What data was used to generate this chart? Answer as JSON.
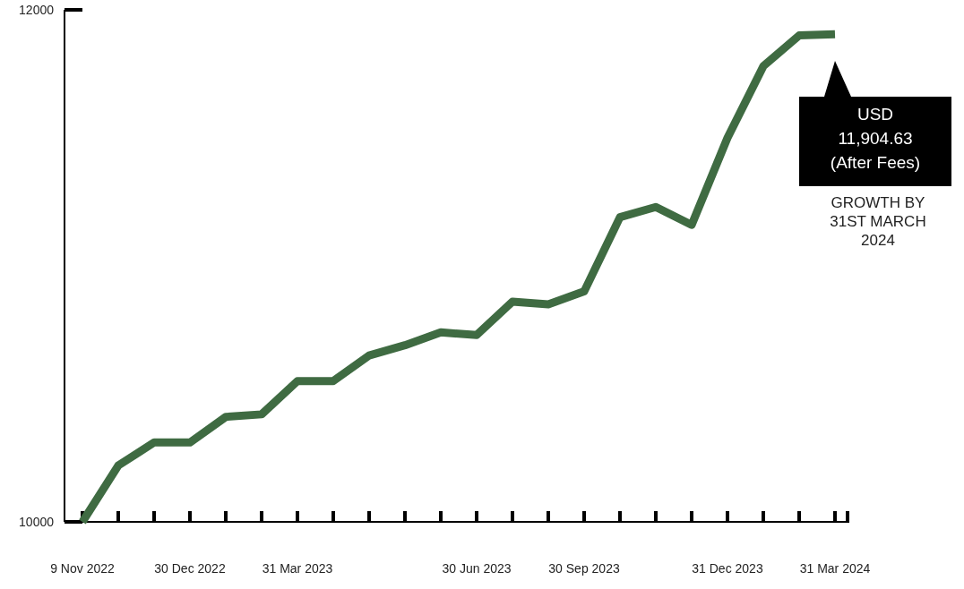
{
  "chart_data": {
    "type": "line",
    "categories": [
      "9 Nov 2022",
      null,
      null,
      "30 Dec 2022",
      null,
      null,
      "31 Mar 2023",
      null,
      null,
      null,
      null,
      "30 Jun 2023",
      null,
      null,
      "30 Sep 2023",
      null,
      null,
      null,
      "31 Dec 2023",
      null,
      null,
      "31 Mar 2024"
    ],
    "values": [
      10000,
      10220,
      10310,
      10310,
      10410,
      10420,
      10550,
      10550,
      10650,
      10690,
      10740,
      10730,
      10860,
      10850,
      10900,
      11190,
      11230,
      11160,
      11500,
      11780,
      11900,
      11905
    ],
    "color": "#3f6b42",
    "ylim": [
      10000,
      12000
    ],
    "yticks": [
      10000,
      12000
    ],
    "annotations": [
      "USD\n11,904.63\n(After Fees)",
      "GROWTH BY\n31ST MARCH\n2024"
    ]
  }
}
